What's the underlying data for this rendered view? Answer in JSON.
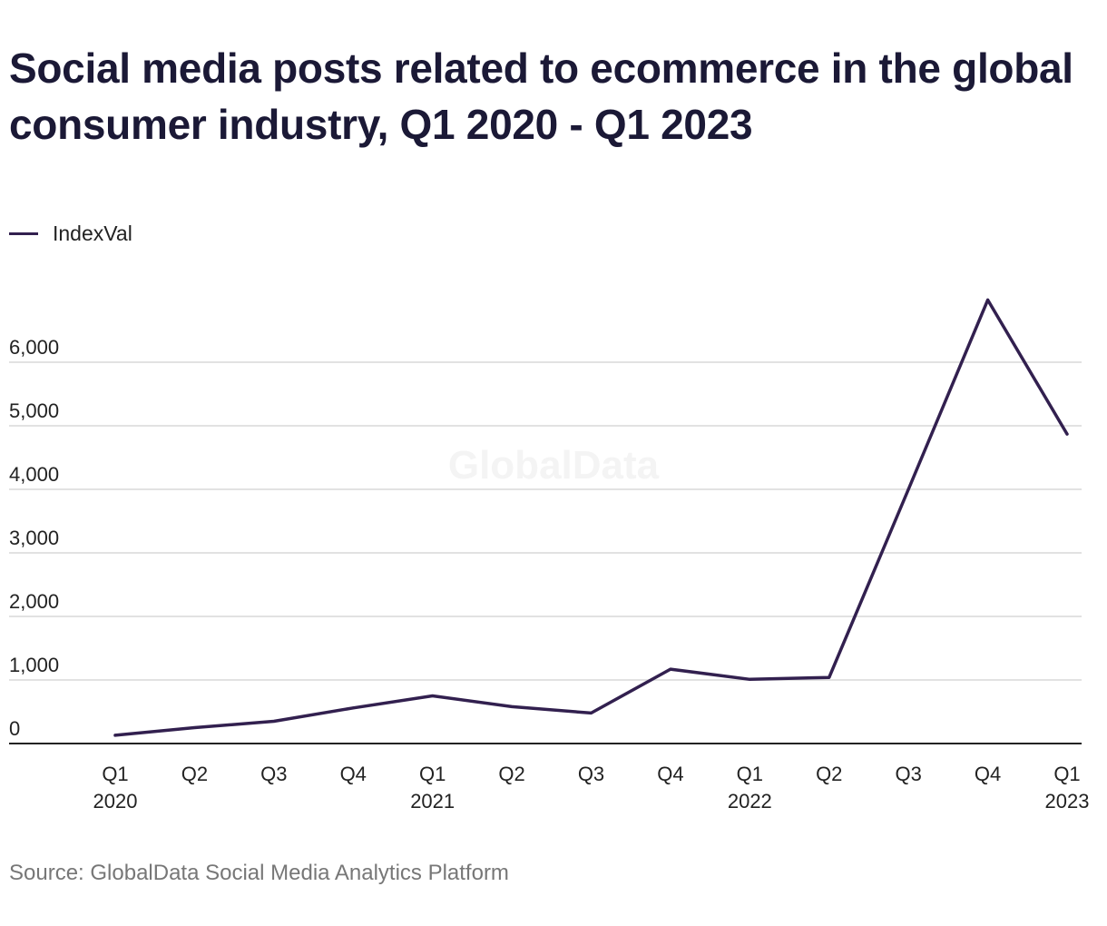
{
  "title": "Social media posts related to ecommerce in the global consumer industry, Q1 2020 - Q1 2023",
  "source": "Source: GlobalData Social Media Analytics Platform",
  "watermark": "GlobalData",
  "colors": {
    "line": "#32204f",
    "grid": "#d9d9d9",
    "axis": "#222222",
    "text": "#222222",
    "watermark": "#f4f4f4"
  },
  "chart_data": {
    "type": "line",
    "legend_position": "top-left",
    "grid": true,
    "x": [
      {
        "q": "Q1",
        "year": "2020"
      },
      {
        "q": "Q2",
        "year": ""
      },
      {
        "q": "Q3",
        "year": ""
      },
      {
        "q": "Q4",
        "year": ""
      },
      {
        "q": "Q1",
        "year": "2021"
      },
      {
        "q": "Q2",
        "year": ""
      },
      {
        "q": "Q3",
        "year": ""
      },
      {
        "q": "Q4",
        "year": ""
      },
      {
        "q": "Q1",
        "year": "2022"
      },
      {
        "q": "Q2",
        "year": ""
      },
      {
        "q": "Q3",
        "year": ""
      },
      {
        "q": "Q4",
        "year": ""
      },
      {
        "q": "Q1",
        "year": "2023"
      }
    ],
    "series": [
      {
        "name": "IndexVal",
        "values": [
          130,
          250,
          350,
          560,
          750,
          580,
          480,
          1170,
          1010,
          1040,
          4000,
          6980,
          4870
        ]
      }
    ],
    "ylim": [
      0,
      7000
    ],
    "yticks": [
      0,
      1000,
      2000,
      3000,
      4000,
      5000,
      6000
    ],
    "ytick_labels": [
      "0",
      "1,000",
      "2,000",
      "3,000",
      "4,000",
      "5,000",
      "6,000"
    ]
  }
}
